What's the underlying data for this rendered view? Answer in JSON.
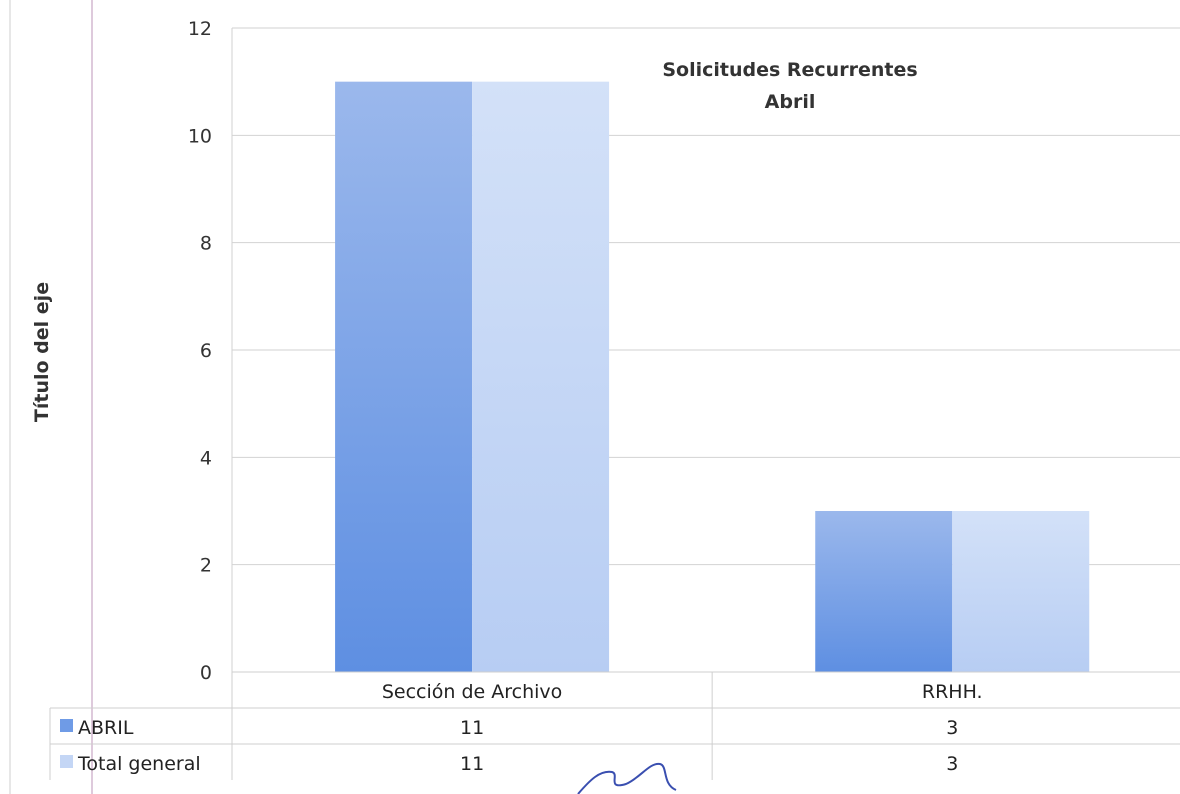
{
  "chart_data": {
    "type": "bar",
    "title": "Solicitudes Recurrentes",
    "subtitle": "Abril",
    "ylabel": "Título del eje",
    "xlabel": "",
    "categories": [
      "Sección de Archivo",
      "RRHH."
    ],
    "series": [
      {
        "name": "ABRIL",
        "values": [
          11,
          3
        ],
        "color": "#6f9be6"
      },
      {
        "name": "Total general",
        "values": [
          11,
          3
        ],
        "color": "#c4d6f5"
      }
    ],
    "ylim": [
      0,
      12
    ],
    "yticks": [
      0,
      2,
      4,
      6,
      8,
      10,
      12
    ],
    "grid": true,
    "legend": "data-table",
    "data_table": true
  }
}
